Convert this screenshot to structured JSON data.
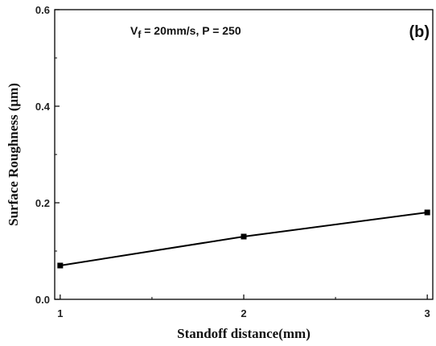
{
  "chart_data": {
    "type": "line",
    "title": "",
    "xlabel": "Standoff distance(mm)",
    "ylabel": "Surface Roughness (μm)",
    "xlim": [
      0.97,
      3.03
    ],
    "ylim": [
      0.0,
      0.6
    ],
    "x_ticks": [
      "1",
      "2",
      "3"
    ],
    "y_ticks": [
      "0.0",
      "0.2",
      "0.4",
      "0.6"
    ],
    "series": [
      {
        "x": [
          1,
          2,
          3
        ],
        "values": [
          0.07,
          0.13,
          0.18
        ],
        "marker": "square",
        "color": "#000000"
      }
    ],
    "grid": false,
    "annotation": {
      "main": "V",
      "subscript": "f",
      "rest": " = 20mm/s, P = 250"
    },
    "panel_label": "(b)"
  }
}
